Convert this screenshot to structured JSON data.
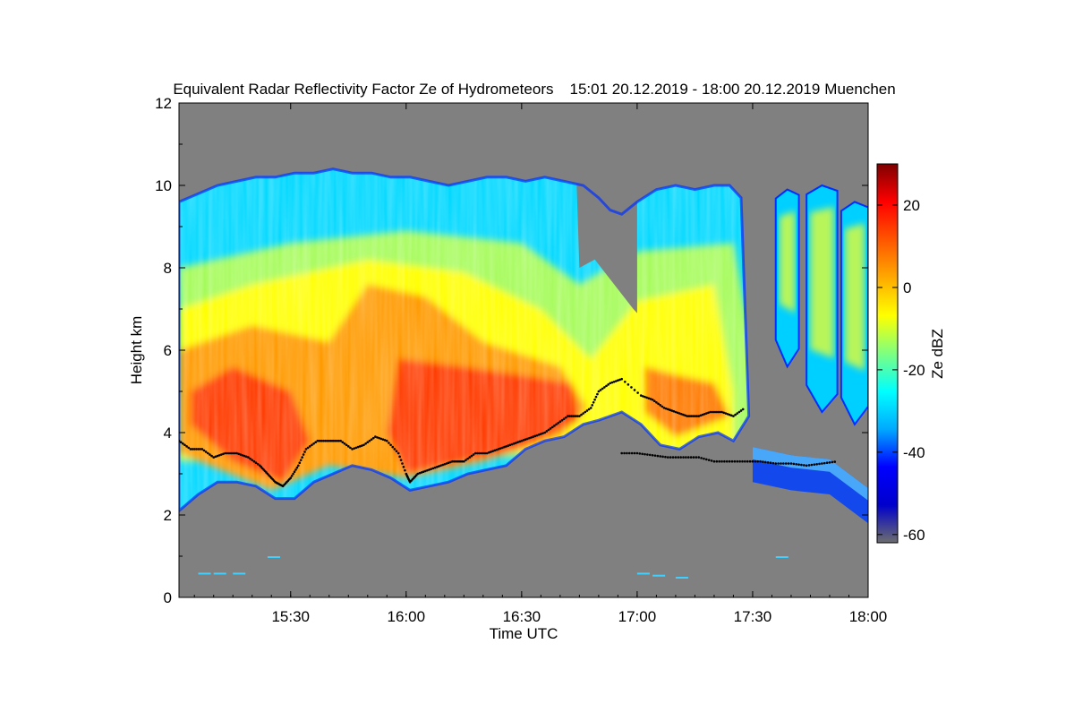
{
  "chart_data": {
    "type": "heatmap",
    "title": "Equivalent Radar Reflectivity Factor Ze of Hydrometeors",
    "period": "15:01 20.12.2019 - 18:00 20.12.2019",
    "location": "Muenchen",
    "xlabel": "Time UTC",
    "ylabel": "Height km",
    "xlim_minutes_utc": [
      901,
      1080
    ],
    "ylim_km": [
      0,
      12
    ],
    "x_ticks": [
      {
        "minute": 930,
        "label": "15:30"
      },
      {
        "minute": 960,
        "label": "16:00"
      },
      {
        "minute": 990,
        "label": "16:30"
      },
      {
        "minute": 1020,
        "label": "17:00"
      },
      {
        "minute": 1050,
        "label": "17:30"
      },
      {
        "minute": 1080,
        "label": "18:00"
      }
    ],
    "y_ticks": [
      {
        "value": 0,
        "label": "0"
      },
      {
        "value": 2,
        "label": "2"
      },
      {
        "value": 4,
        "label": "4"
      },
      {
        "value": 6,
        "label": "6"
      },
      {
        "value": 8,
        "label": "8"
      },
      {
        "value": 10,
        "label": "10"
      },
      {
        "value": 12,
        "label": "12"
      }
    ],
    "colorbar": {
      "label": "Ze dBZ",
      "range": [
        -62,
        30
      ],
      "ticks": [
        {
          "value": 20,
          "label": "20"
        },
        {
          "value": 0,
          "label": "0"
        },
        {
          "value": -20,
          "label": "-20"
        },
        {
          "value": -40,
          "label": "-40"
        },
        {
          "value": -60,
          "label": "-60"
        }
      ],
      "colors": [
        "#6e6e6e",
        "#0000cc",
        "#0000ff",
        "#00aaff",
        "#00ffff",
        "#7fff7f",
        "#ffff00",
        "#ffaa00",
        "#ff5500",
        "#ff0000",
        "#7f0000"
      ]
    },
    "background_color": "#808080",
    "cloud_top_km": [
      [
        901,
        9.6
      ],
      [
        906,
        9.8
      ],
      [
        911,
        10.0
      ],
      [
        916,
        10.1
      ],
      [
        921,
        10.2
      ],
      [
        926,
        10.2
      ],
      [
        931,
        10.3
      ],
      [
        936,
        10.3
      ],
      [
        941,
        10.4
      ],
      [
        946,
        10.3
      ],
      [
        951,
        10.3
      ],
      [
        956,
        10.2
      ],
      [
        961,
        10.2
      ],
      [
        966,
        10.1
      ],
      [
        971,
        10.0
      ],
      [
        976,
        10.1
      ],
      [
        981,
        10.2
      ],
      [
        986,
        10.2
      ],
      [
        991,
        10.1
      ],
      [
        996,
        10.2
      ],
      [
        1001,
        10.1
      ],
      [
        1006,
        10.0
      ],
      [
        1010,
        9.7
      ],
      [
        1013,
        9.4
      ],
      [
        1016,
        9.3
      ],
      [
        1020,
        9.6
      ],
      [
        1025,
        9.9
      ],
      [
        1030,
        10.0
      ],
      [
        1035,
        9.9
      ],
      [
        1040,
        10.0
      ],
      [
        1044,
        10.0
      ],
      [
        1047,
        9.7
      ]
    ],
    "cloud_base_km": [
      [
        901,
        2.1
      ],
      [
        906,
        2.5
      ],
      [
        911,
        2.8
      ],
      [
        916,
        2.8
      ],
      [
        921,
        2.7
      ],
      [
        926,
        2.4
      ],
      [
        931,
        2.4
      ],
      [
        936,
        2.8
      ],
      [
        941,
        3.0
      ],
      [
        946,
        3.2
      ],
      [
        951,
        3.1
      ],
      [
        956,
        2.9
      ],
      [
        961,
        2.6
      ],
      [
        966,
        2.7
      ],
      [
        971,
        2.8
      ],
      [
        976,
        3.0
      ],
      [
        981,
        3.1
      ],
      [
        986,
        3.2
      ],
      [
        991,
        3.6
      ],
      [
        996,
        3.8
      ],
      [
        1001,
        3.9
      ],
      [
        1006,
        4.2
      ],
      [
        1010,
        4.3
      ],
      [
        1016,
        4.5
      ],
      [
        1021,
        4.2
      ],
      [
        1026,
        3.7
      ],
      [
        1031,
        3.6
      ],
      [
        1036,
        3.9
      ],
      [
        1041,
        4.0
      ],
      [
        1045,
        3.8
      ],
      [
        1049,
        4.4
      ]
    ],
    "gap_region_km": [
      [
        1005,
        8.0
      ],
      [
        1009,
        8.2
      ],
      [
        1014,
        7.6
      ],
      [
        1019,
        7.0
      ],
      [
        1020,
        6.9
      ]
    ],
    "trailing_cells": [
      {
        "x0": 1056,
        "x1": 1062,
        "bottom": 5.6,
        "top": 9.9
      },
      {
        "x0": 1064,
        "x1": 1072,
        "bottom": 4.5,
        "top": 10.0
      },
      {
        "x0": 1073,
        "x1": 1080,
        "bottom": 4.2,
        "top": 9.6
      }
    ],
    "low_layer_km": [
      [
        1050,
        3.3
      ],
      [
        1060,
        3.1
      ],
      [
        1070,
        3.0
      ],
      [
        1080,
        2.3
      ]
    ],
    "melting_layer_dots_km": [
      [
        901,
        3.8
      ],
      [
        904,
        3.6
      ],
      [
        907,
        3.6
      ],
      [
        910,
        3.4
      ],
      [
        913,
        3.5
      ],
      [
        916,
        3.5
      ],
      [
        919,
        3.4
      ],
      [
        922,
        3.2
      ],
      [
        924,
        3.0
      ],
      [
        926,
        2.8
      ],
      [
        928,
        2.7
      ],
      [
        930,
        2.9
      ],
      [
        932,
        3.2
      ],
      [
        934,
        3.6
      ],
      [
        937,
        3.8
      ],
      [
        940,
        3.8
      ],
      [
        943,
        3.8
      ],
      [
        946,
        3.6
      ],
      [
        949,
        3.7
      ],
      [
        952,
        3.9
      ],
      [
        955,
        3.8
      ],
      [
        958,
        3.5
      ],
      [
        960,
        3.0
      ],
      [
        961,
        2.8
      ],
      [
        963,
        3.0
      ],
      [
        966,
        3.1
      ],
      [
        969,
        3.2
      ],
      [
        972,
        3.3
      ],
      [
        975,
        3.3
      ],
      [
        978,
        3.5
      ],
      [
        981,
        3.5
      ],
      [
        984,
        3.6
      ],
      [
        987,
        3.7
      ],
      [
        990,
        3.8
      ],
      [
        993,
        3.9
      ],
      [
        996,
        4.0
      ],
      [
        999,
        4.2
      ],
      [
        1002,
        4.4
      ],
      [
        1005,
        4.4
      ],
      [
        1008,
        4.6
      ],
      [
        1010,
        5.0
      ],
      [
        1013,
        5.2
      ],
      [
        1016,
        5.3
      ],
      [
        1021,
        4.9
      ],
      [
        1024,
        4.8
      ],
      [
        1027,
        4.6
      ],
      [
        1030,
        4.5
      ],
      [
        1033,
        4.4
      ],
      [
        1036,
        4.4
      ],
      [
        1039,
        4.5
      ],
      [
        1042,
        4.5
      ],
      [
        1045,
        4.4
      ],
      [
        1048,
        4.6
      ]
    ],
    "lower_dots_km": [
      [
        1016,
        3.5
      ],
      [
        1020,
        3.5
      ],
      [
        1024,
        3.45
      ],
      [
        1028,
        3.4
      ],
      [
        1032,
        3.4
      ],
      [
        1036,
        3.4
      ],
      [
        1040,
        3.3
      ],
      [
        1044,
        3.3
      ],
      [
        1048,
        3.3
      ],
      [
        1052,
        3.3
      ],
      [
        1056,
        3.25
      ],
      [
        1060,
        3.25
      ],
      [
        1064,
        3.2
      ],
      [
        1068,
        3.25
      ],
      [
        1072,
        3.3
      ]
    ]
  }
}
